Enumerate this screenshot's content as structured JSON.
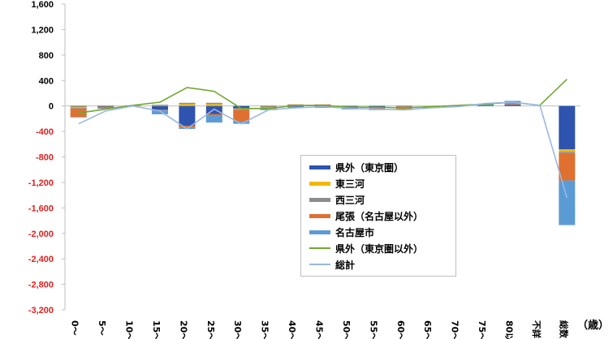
{
  "chart_data": {
    "type": "bar",
    "stacked": true,
    "unit_label": "（歳）",
    "ylim": [
      -3200,
      1600
    ],
    "yticks": [
      1600,
      1200,
      800,
      400,
      0,
      -400,
      -800,
      -1200,
      -1600,
      -2000,
      -2400,
      -2800,
      -3200
    ],
    "ytick_labels": [
      "1,600",
      "1,200",
      "800",
      "400",
      "0",
      "-400",
      "-800",
      "-1,200",
      "-1,600",
      "-2,000",
      "-2,400",
      "-2,800",
      "-3,200"
    ],
    "categories": [
      "0～",
      "5～",
      "10～",
      "15～",
      "20～",
      "25～",
      "30～",
      "35～",
      "40～",
      "45～",
      "50～",
      "55～",
      "60～",
      "65～",
      "70～",
      "75～",
      "80以",
      "不詳",
      "総数"
    ],
    "series": [
      {
        "name": "県外（東京圏）",
        "kind": "bar",
        "color": "#2e54b0",
        "values": [
          -10,
          -10,
          0,
          -60,
          -310,
          -130,
          -40,
          -10,
          -10,
          -10,
          -10,
          -20,
          -10,
          0,
          10,
          10,
          20,
          0,
          -680
        ]
      },
      {
        "name": "東三河",
        "kind": "bar",
        "color": "#f2b800",
        "values": [
          -20,
          10,
          0,
          10,
          30,
          30,
          -10,
          -10,
          10,
          10,
          -10,
          -10,
          -10,
          -10,
          0,
          0,
          0,
          0,
          -40
        ]
      },
      {
        "name": "西三河",
        "kind": "bar",
        "color": "#8c8c8c",
        "values": [
          -10,
          -5,
          0,
          10,
          20,
          20,
          -10,
          -5,
          5,
          5,
          -5,
          -5,
          -5,
          0,
          0,
          0,
          0,
          0,
          -20
        ]
      },
      {
        "name": "尾張（名古屋以外）",
        "kind": "bar",
        "color": "#e07030",
        "values": [
          -130,
          -20,
          10,
          -10,
          -30,
          -20,
          -180,
          -20,
          10,
          10,
          -20,
          -20,
          -30,
          -10,
          0,
          0,
          10,
          0,
          -430
        ]
      },
      {
        "name": "名古屋市",
        "kind": "bar",
        "color": "#5b9bd5",
        "values": [
          -10,
          -10,
          0,
          -60,
          -20,
          -110,
          -40,
          -20,
          -20,
          -20,
          -10,
          -10,
          -10,
          -10,
          0,
          20,
          50,
          0,
          -700
        ]
      },
      {
        "name": "県外（東京圏以外）",
        "kind": "line",
        "color": "#70a830",
        "values": [
          -110,
          -50,
          10,
          60,
          290,
          230,
          -40,
          -40,
          10,
          10,
          -20,
          -20,
          -30,
          -10,
          10,
          30,
          60,
          10,
          420
        ]
      },
      {
        "name": "総計",
        "kind": "line",
        "color": "#9ab8e0",
        "values": [
          -280,
          -80,
          0,
          -80,
          -360,
          -50,
          -280,
          -60,
          -30,
          -10,
          -40,
          -50,
          -60,
          -30,
          -10,
          40,
          60,
          10,
          -1440
        ]
      }
    ]
  }
}
